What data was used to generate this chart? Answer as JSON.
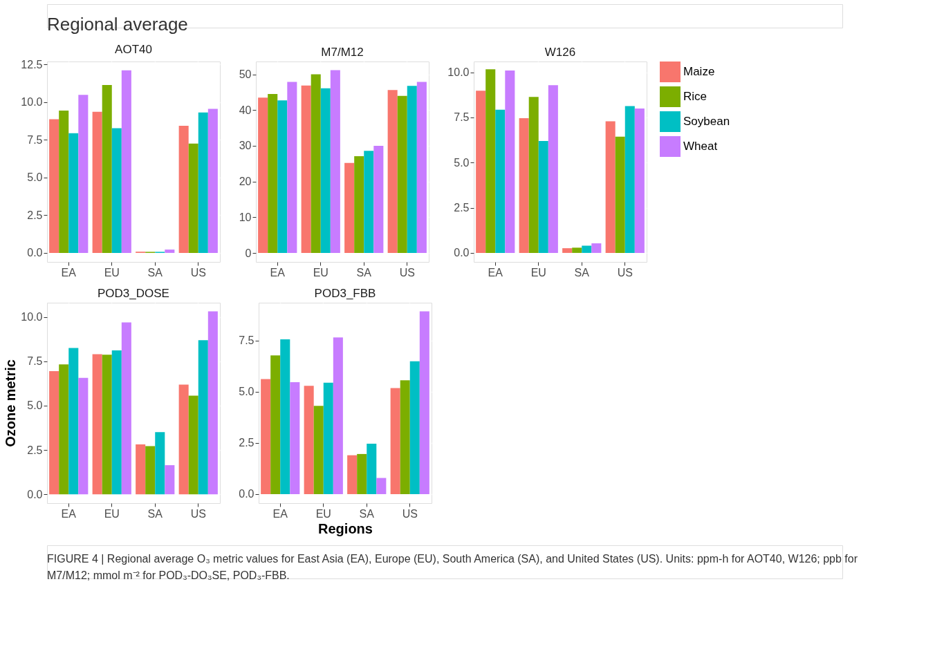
{
  "chart_data": [
    {
      "type": "bar",
      "title": "AOT40",
      "annotations": [
        "Regional average"
      ],
      "categories": [
        "EA",
        "EU",
        "SA",
        "US"
      ],
      "ylim": [
        -0.6,
        12.7
      ],
      "yticks": [
        {
          "value": 0,
          "label": "0.0"
        },
        2.5,
        {
          "value": 5,
          "label": "5.0"
        },
        7.5,
        {
          "value": 10,
          "label": "10.0"
        },
        12.5
      ],
      "grid": true,
      "legend": "right",
      "series": [
        {
          "name": "Maize",
          "color": "#f8766d",
          "values": [
            8.87,
            9.36,
            0.08,
            8.43
          ]
        },
        {
          "name": "Rice",
          "color": "#7cae00",
          "values": [
            9.44,
            11.14,
            0.07,
            7.25
          ]
        },
        {
          "name": "Soybean",
          "color": "#00bfc4",
          "values": [
            7.94,
            8.27,
            0.07,
            9.32
          ]
        },
        {
          "name": "Wheat",
          "color": "#c77cff",
          "values": [
            10.49,
            12.11,
            0.22,
            9.56
          ]
        }
      ]
    },
    {
      "type": "bar",
      "title": "M7/M12",
      "categories": [
        "EA",
        "EU",
        "SA",
        "US"
      ],
      "ylim": [
        -2.5,
        53.6
      ],
      "yticks": [
        0,
        10,
        20,
        30,
        40,
        50
      ],
      "grid": true,
      "series": [
        {
          "name": "Maize",
          "color": "#f8766d",
          "values": [
            43.5,
            46.9,
            25.2,
            45.6
          ]
        },
        {
          "name": "Rice",
          "color": "#7cae00",
          "values": [
            44.5,
            50.0,
            27.1,
            44.0
          ]
        },
        {
          "name": "Soybean",
          "color": "#00bfc4",
          "values": [
            42.7,
            46.1,
            28.6,
            46.8
          ]
        },
        {
          "name": "Wheat",
          "color": "#c77cff",
          "values": [
            47.9,
            51.2,
            30.0,
            47.9
          ]
        }
      ]
    },
    {
      "type": "bar",
      "title": "W126",
      "categories": [
        "EA",
        "EU",
        "SA",
        "US"
      ],
      "ylim": [
        -0.5,
        10.6
      ],
      "yticks": [
        {
          "value": 0,
          "label": "0.0"
        },
        2.5,
        {
          "value": 5,
          "label": "5.0"
        },
        7.5,
        {
          "value": 10,
          "label": "10.0"
        }
      ],
      "grid": true,
      "series": [
        {
          "name": "Maize",
          "color": "#f8766d",
          "values": [
            8.98,
            7.46,
            0.26,
            7.29
          ]
        },
        {
          "name": "Rice",
          "color": "#7cae00",
          "values": [
            10.17,
            8.64,
            0.29,
            6.44
          ]
        },
        {
          "name": "Soybean",
          "color": "#00bfc4",
          "values": [
            7.93,
            6.2,
            0.4,
            8.13
          ]
        },
        {
          "name": "Wheat",
          "color": "#c77cff",
          "values": [
            10.1,
            9.29,
            0.53,
            8.0
          ]
        }
      ]
    },
    {
      "type": "bar",
      "title": "POD3_DOSE",
      "ylabel": "Ozone metric",
      "categories": [
        "EA",
        "EU",
        "SA",
        "US"
      ],
      "ylim": [
        -0.5,
        10.8
      ],
      "yticks": [
        {
          "value": 0,
          "label": "0.0"
        },
        2.5,
        {
          "value": 5,
          "label": "5.0"
        },
        7.5,
        {
          "value": 10,
          "label": "10.0"
        }
      ],
      "grid": true,
      "series": [
        {
          "name": "Maize",
          "color": "#f8766d",
          "values": [
            6.94,
            7.9,
            2.81,
            6.18
          ]
        },
        {
          "name": "Rice",
          "color": "#7cae00",
          "values": [
            7.32,
            7.87,
            2.71,
            5.56
          ]
        },
        {
          "name": "Soybean",
          "color": "#00bfc4",
          "values": [
            8.25,
            8.11,
            3.5,
            8.69
          ]
        },
        {
          "name": "Wheat",
          "color": "#c77cff",
          "values": [
            6.56,
            9.69,
            1.64,
            10.31
          ]
        }
      ]
    },
    {
      "type": "bar",
      "title": "POD3_FBB",
      "xlabel": "Regions",
      "annotations": [
        "FIGURE 4 | Regional average O₃ metric values for East Asia (EA), Europe (EU), South America (SA), and United States (US). Units: ppm-h for AOT40, W126; ppb for M7/M12; mmol m⁻² for POD₃-DO₃SE, POD₃-FBB."
      ],
      "categories": [
        "EA",
        "EU",
        "SA",
        "US"
      ],
      "ylim": [
        -0.44,
        9.35
      ],
      "yticks": [
        {
          "value": 0,
          "label": "0.0"
        },
        2.5,
        {
          "value": 5,
          "label": "5.0"
        },
        7.5
      ],
      "grid": true,
      "series": [
        {
          "name": "Maize",
          "color": "#f8766d",
          "values": [
            5.62,
            5.29,
            1.9,
            5.18
          ]
        },
        {
          "name": "Rice",
          "color": "#7cae00",
          "values": [
            6.78,
            4.31,
            1.96,
            5.56
          ]
        },
        {
          "name": "Soybean",
          "color": "#00bfc4",
          "values": [
            7.56,
            5.44,
            2.46,
            6.49
          ]
        },
        {
          "name": "Wheat",
          "color": "#c77cff",
          "values": [
            5.47,
            7.65,
            0.79,
            8.93
          ]
        }
      ]
    }
  ]
}
